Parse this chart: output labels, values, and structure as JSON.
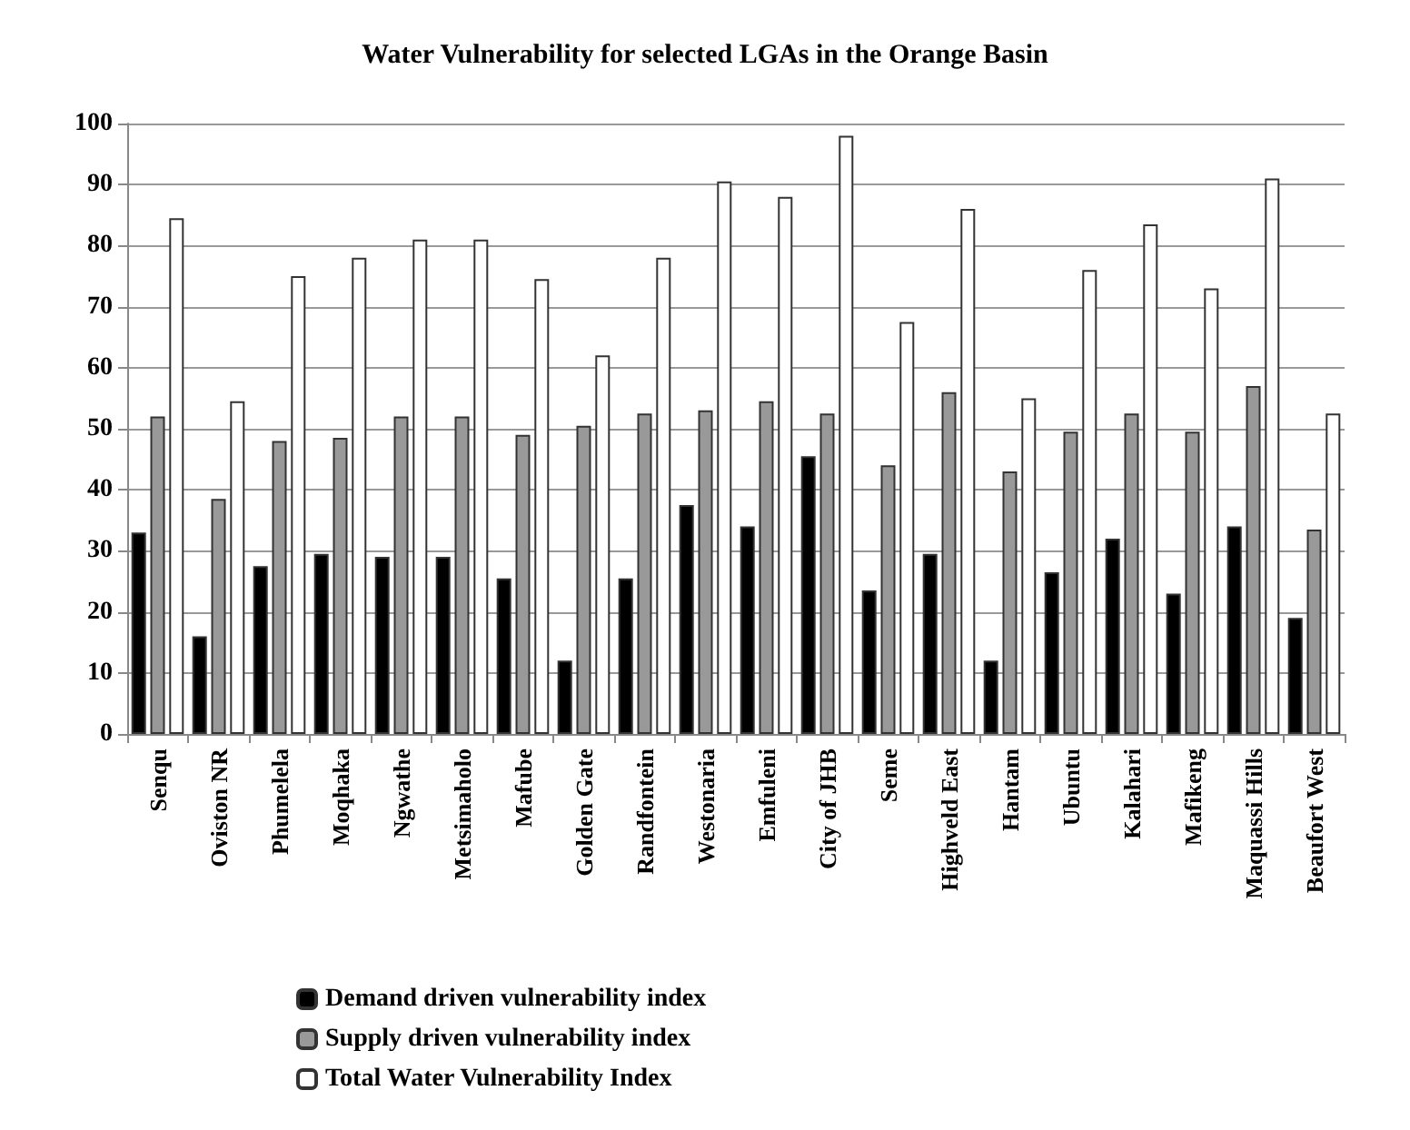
{
  "chart_data": {
    "type": "bar",
    "title": "Water Vulnerability for selected LGAs in the Orange Basin",
    "categories": [
      "Senqu",
      "Oviston NR",
      "Phumelela",
      "Moqhaka",
      "Ngwathe",
      "Metsimaholo",
      "Mafube",
      "Golden Gate",
      "Randfontein",
      "Westonaria",
      "Emfuleni",
      "City of JHB",
      "Seme",
      "Highveld East",
      "Hantam",
      "Ubuntu",
      "Kalahari",
      "Mafikeng",
      "Maquassi Hills",
      "Beaufort West"
    ],
    "series": [
      {
        "name": "Demand driven vulnerability index",
        "color": "#000000",
        "values": [
          33,
          16,
          27.5,
          29.5,
          29,
          29,
          25.5,
          12,
          25.5,
          37.5,
          34,
          45.5,
          23.5,
          29.5,
          12,
          26.5,
          32,
          23,
          34,
          19
        ]
      },
      {
        "name": "Supply driven vulnerability index",
        "color": "#999999",
        "values": [
          52,
          38.5,
          48,
          48.5,
          52,
          52,
          49,
          50.5,
          52.5,
          53,
          54.5,
          52.5,
          44,
          56,
          43,
          49.5,
          52.5,
          49.5,
          57,
          33.5
        ]
      },
      {
        "name": "Total Water Vulnerability Index",
        "color": "#ffffff",
        "values": [
          84.5,
          54.5,
          75,
          78,
          81,
          81,
          74.5,
          62,
          78,
          90.5,
          88,
          98,
          67.5,
          86,
          55,
          76,
          83.5,
          73,
          91,
          52.5
        ]
      }
    ],
    "ylim": [
      0,
      100
    ],
    "yticks": [
      0,
      10,
      20,
      30,
      40,
      50,
      60,
      70,
      80,
      90,
      100
    ],
    "grid": "y",
    "legend": "bottom"
  }
}
